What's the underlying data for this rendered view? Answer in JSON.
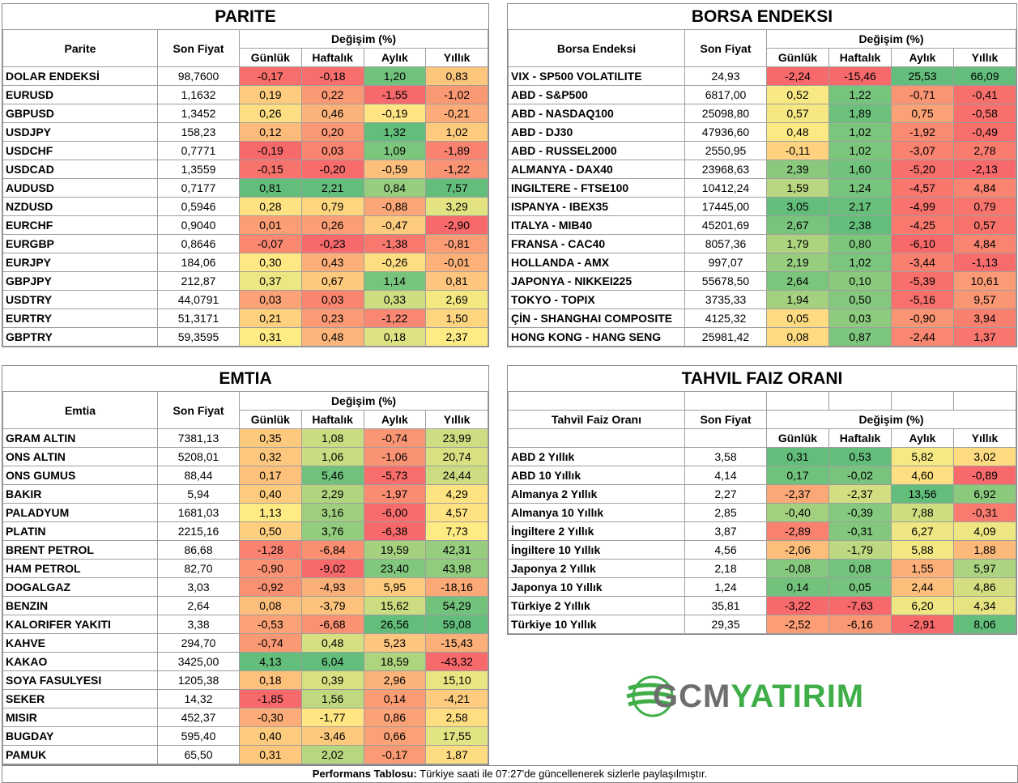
{
  "colors": {
    "red": "#f8696b",
    "yellow": "#ffeb84",
    "green": "#63be7b"
  },
  "common": {
    "son_fiyat": "Son Fiyat",
    "degisim": "Değişim (%)",
    "gunluk": "Günlük",
    "haftalik": "Haftalık",
    "aylik": "Aylık",
    "yillik": "Yıllık"
  },
  "parite": {
    "title": "PARITE",
    "name_header": "Parite",
    "rows": [
      [
        "DOLAR ENDEKSİ",
        "98,7600",
        "-0,17",
        "-0,18",
        "1,20",
        "0,83"
      ],
      [
        "EURUSD",
        "1,1632",
        "0,19",
        "0,22",
        "-1,55",
        "-1,02"
      ],
      [
        "GBPUSD",
        "1,3452",
        "0,26",
        "0,46",
        "-0,19",
        "-0,21"
      ],
      [
        "USDJPY",
        "158,23",
        "0,12",
        "0,20",
        "1,32",
        "1,02"
      ],
      [
        "USDCHF",
        "0,7771",
        "-0,19",
        "0,03",
        "1,09",
        "-1,89"
      ],
      [
        "USDCAD",
        "1,3559",
        "-0,15",
        "-0,20",
        "-0,59",
        "-1,22"
      ],
      [
        "AUDUSD",
        "0,7177",
        "0,81",
        "2,21",
        "0,84",
        "7,57"
      ],
      [
        "NZDUSD",
        "0,5946",
        "0,28",
        "0,79",
        "-0,88",
        "3,29"
      ],
      [
        "EURCHF",
        "0,9040",
        "0,01",
        "0,26",
        "-0,47",
        "-2,90"
      ],
      [
        "EURGBP",
        "0,8646",
        "-0,07",
        "-0,23",
        "-1,38",
        "-0,81"
      ],
      [
        "EURJPY",
        "184,06",
        "0,30",
        "0,43",
        "-0,26",
        "-0,01"
      ],
      [
        "GBPJPY",
        "212,87",
        "0,37",
        "0,67",
        "1,14",
        "0,81"
      ],
      [
        "USDTRY",
        "44,0791",
        "0,03",
        "0,03",
        "0,33",
        "2,69"
      ],
      [
        "EURTRY",
        "51,3171",
        "0,21",
        "0,23",
        "-1,22",
        "1,50"
      ],
      [
        "GBPTRY",
        "59,3595",
        "0,31",
        "0,48",
        "0,18",
        "2,37"
      ]
    ]
  },
  "borsa": {
    "title": "BORSA ENDEKSI",
    "name_header": "Borsa Endeksi",
    "rows": [
      [
        "VIX  - SP500 VOLATILITE",
        "24,93",
        "-2,24",
        "-15,46",
        "25,53",
        "66,09"
      ],
      [
        "ABD - S&P500",
        "6817,00",
        "0,52",
        "1,22",
        "-0,71",
        "-0,41"
      ],
      [
        "ABD - NASDAQ100",
        "25098,80",
        "0,57",
        "1,89",
        "0,75",
        "-0,58"
      ],
      [
        "ABD - DJ30",
        "47936,60",
        "0,48",
        "1,02",
        "-1,92",
        "-0,49"
      ],
      [
        "ABD - RUSSEL2000",
        "2550,95",
        "-0,11",
        "1,02",
        "-3,07",
        "2,78"
      ],
      [
        "ALMANYA - DAX40",
        "23968,63",
        "2,39",
        "1,60",
        "-5,20",
        "-2,13"
      ],
      [
        "INGILTERE - FTSE100",
        "10412,24",
        "1,59",
        "1,24",
        "-4,57",
        "4,84"
      ],
      [
        "ISPANYA - IBEX35",
        "17445,00",
        "3,05",
        "2,17",
        "-4,99",
        "0,79"
      ],
      [
        "ITALYA - MIB40",
        "45201,69",
        "2,67",
        "2,38",
        "-4,25",
        "0,57"
      ],
      [
        "FRANSA - CAC40",
        "8057,36",
        "1,79",
        "0,80",
        "-6,10",
        "4,84"
      ],
      [
        "HOLLANDA - AMX",
        "997,07",
        "2,19",
        "1,02",
        "-3,44",
        "-1,13"
      ],
      [
        "JAPONYA - NIKKEI225",
        "55678,50",
        "2,64",
        "0,10",
        "-5,39",
        "10,61"
      ],
      [
        "TOKYO - TOPIX",
        "3735,33",
        "1,94",
        "0,50",
        "-5,16",
        "9,57"
      ],
      [
        "ÇİN - SHANGHAI COMPOSITE",
        "4125,32",
        "0,05",
        "0,03",
        "-0,90",
        "3,94"
      ],
      [
        "HONG KONG - HANG SENG",
        "25981,42",
        "0,08",
        "0,87",
        "-2,44",
        "1,37"
      ]
    ]
  },
  "emtia": {
    "title": "EMTIA",
    "name_header": "Emtia",
    "rows": [
      [
        "GRAM ALTIN",
        "7381,13",
        "0,35",
        "1,08",
        "-0,74",
        "23,99"
      ],
      [
        "ONS ALTIN",
        "5208,01",
        "0,32",
        "1,06",
        "-1,06",
        "20,74"
      ],
      [
        "ONS GUMUS",
        "88,44",
        "0,17",
        "5,46",
        "-5,73",
        "24,44"
      ],
      [
        "BAKIR",
        "5,94",
        "0,40",
        "2,29",
        "-1,97",
        "4,29"
      ],
      [
        "PALADYUM",
        "1681,03",
        "1,13",
        "3,16",
        "-6,00",
        "4,57"
      ],
      [
        "PLATIN",
        "2215,16",
        "0,50",
        "3,76",
        "-6,38",
        "7,73"
      ],
      [
        "BRENT PETROL",
        "86,68",
        "-1,28",
        "-6,84",
        "19,59",
        "42,31"
      ],
      [
        "HAM PETROL",
        "82,70",
        "-0,90",
        "-9,02",
        "23,40",
        "43,98"
      ],
      [
        "DOGALGAZ",
        "3,03",
        "-0,92",
        "-4,93",
        "5,95",
        "-18,16"
      ],
      [
        "BENZIN",
        "2,64",
        "0,08",
        "-3,79",
        "15,62",
        "54,29"
      ],
      [
        "KALORIFER YAKITI",
        "3,38",
        "-0,53",
        "-6,68",
        "26,56",
        "59,08"
      ],
      [
        "KAHVE",
        "294,70",
        "-0,74",
        "0,48",
        "5,23",
        "-15,43"
      ],
      [
        "KAKAO",
        "3425,00",
        "4,13",
        "6,04",
        "18,59",
        "-43,32"
      ],
      [
        "SOYA FASULYESI",
        "1205,38",
        "0,18",
        "0,39",
        "2,96",
        "15,10"
      ],
      [
        "SEKER",
        "14,32",
        "-1,85",
        "1,56",
        "0,14",
        "-4,21"
      ],
      [
        "MISIR",
        "452,37",
        "-0,30",
        "-1,77",
        "0,86",
        "2,58"
      ],
      [
        "BUGDAY",
        "595,40",
        "0,40",
        "-3,46",
        "0,66",
        "17,55"
      ],
      [
        "PAMUK",
        "65,50",
        "0,31",
        "2,02",
        "-0,17",
        "1,87"
      ]
    ]
  },
  "tahvil": {
    "title": "TAHVIL FAIZ ORANI",
    "name_header": "Tahvil Faiz Oranı",
    "rows": [
      [
        "ABD 2 Yıllık",
        "3,58",
        "0,31",
        "0,53",
        "5,82",
        "3,02"
      ],
      [
        "ABD 10 Yıllık",
        "4,14",
        "0,17",
        "-0,02",
        "4,60",
        "-0,89"
      ],
      [
        "Almanya 2 Yıllık",
        "2,27",
        "-2,37",
        "-2,37",
        "13,56",
        "6,92"
      ],
      [
        "Almanya 10 Yıllık",
        "2,85",
        "-0,40",
        "-0,39",
        "7,88",
        "-0,31"
      ],
      [
        "İngiltere 2 Yıllık",
        "3,87",
        "-2,89",
        "-0,31",
        "6,27",
        "4,09"
      ],
      [
        "İngiltere 10 Yıllık",
        "4,56",
        "-2,06",
        "-1,79",
        "5,88",
        "1,88"
      ],
      [
        "Japonya 2 Yıllık",
        "2,18",
        "-0,08",
        "0,08",
        "1,55",
        "5,97"
      ],
      [
        "Japonya 10 Yıllık",
        "1,24",
        "0,14",
        "0,05",
        "2,44",
        "4,86"
      ],
      [
        "Türkiye 2 Yıllık",
        "35,81",
        "-3,22",
        "-7,63",
        "6,20",
        "4,34"
      ],
      [
        "Türkiye 10 Yıllık",
        "29,35",
        "-2,52",
        "-6,16",
        "-2,91",
        "8,06"
      ]
    ]
  },
  "logo": {
    "part1": "GCM",
    "part2": "YATIRIM"
  },
  "footer": {
    "label": "Performans Tablosu:",
    "text": " Türkiye saati ile 07:27'de güncellenerek sizlerle paylaşılmıştır."
  }
}
